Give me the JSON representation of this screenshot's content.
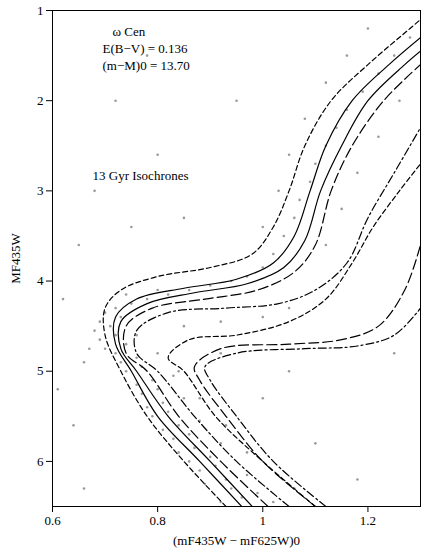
{
  "chart_data": {
    "type": "line",
    "x_label": "(mF435W − mF625W)0",
    "y_label": "MF435W",
    "annotations": [
      "ω Cen",
      "E(B−V) = 0.136",
      "(m−M)0 = 13.70",
      "13 Gyr Isochrones"
    ],
    "xlim": [
      0.6,
      1.3
    ],
    "ylim": [
      6.5,
      1
    ],
    "xticks": [
      0.6,
      0.8,
      1,
      1.2
    ],
    "yticks": [
      1,
      2,
      3,
      4,
      5,
      6
    ],
    "series": [
      {
        "type": "scatter",
        "color": "#9a9a9a",
        "marker": "dot",
        "x": [
          0.92,
          0.96,
          0.99,
          0.94,
          0.89,
          0.93,
          0.97,
          0.88,
          0.91,
          0.86,
          0.9,
          0.84,
          0.87,
          0.92,
          0.83,
          0.86,
          0.81,
          0.84,
          0.88,
          0.79,
          0.82,
          0.78,
          0.81,
          0.85,
          0.77,
          0.8,
          0.76,
          0.79,
          0.83,
          0.74,
          0.77,
          0.73,
          0.76,
          0.72,
          0.7,
          0.74,
          0.69,
          0.72,
          0.68,
          0.71,
          0.69,
          0.73,
          0.7,
          0.72,
          0.75,
          0.78,
          0.74,
          0.82,
          0.86,
          0.8,
          0.9,
          0.94,
          0.97,
          0.85,
          0.92,
          1.0,
          1.05,
          1.0,
          1.02,
          1.04,
          1.06,
          1.07,
          1.09,
          1.1,
          1.12,
          1.14,
          1.16,
          1.19,
          1.22,
          1.25,
          1.28,
          1.0,
          1.03,
          1.05,
          1.08,
          1.12,
          1.16,
          1.2,
          1.12,
          1.15,
          1.18,
          1.22,
          1.26,
          0.62,
          0.65,
          0.68,
          0.75,
          0.85,
          0.8,
          0.61,
          0.64,
          1.05,
          1.1,
          1.0,
          0.92,
          1.18,
          0.66,
          0.95,
          0.72,
          0.78,
          1.25,
          1.02,
          1.06,
          0.97,
          0.93,
          0.88,
          0.84,
          0.8,
          0.76,
          0.67,
          0.66
        ],
        "values": [
          6.45,
          6.4,
          6.35,
          6.3,
          6.25,
          6.2,
          6.15,
          6.1,
          6.05,
          6.0,
          5.95,
          5.9,
          5.85,
          5.8,
          5.75,
          5.7,
          5.65,
          5.6,
          5.55,
          5.5,
          5.45,
          5.4,
          5.35,
          5.3,
          5.25,
          5.2,
          5.15,
          5.1,
          5.05,
          5.0,
          4.95,
          4.9,
          4.85,
          4.8,
          4.75,
          4.7,
          4.65,
          4.6,
          4.55,
          4.5,
          4.45,
          4.4,
          4.35,
          4.3,
          4.25,
          4.2,
          4.15,
          4.15,
          4.1,
          4.1,
          4.05,
          4.0,
          3.95,
          4.5,
          4.45,
          4.4,
          4.3,
          3.85,
          3.7,
          3.5,
          3.3,
          3.1,
          2.9,
          2.7,
          2.5,
          2.3,
          2.1,
          1.9,
          1.7,
          1.5,
          1.3,
          3.4,
          3.0,
          2.6,
          2.2,
          1.8,
          1.5,
          1.2,
          3.6,
          3.2,
          2.8,
          2.4,
          2.0,
          4.2,
          3.6,
          3.0,
          3.4,
          3.3,
          2.6,
          5.2,
          5.6,
          5.0,
          5.8,
          5.3,
          4.8,
          6.2,
          6.3,
          2.0,
          2.0,
          1.5,
          4.8,
          6.45,
          6.3,
          5.9,
          5.6,
          5.3,
          5.0,
          4.8,
          4.6,
          4.75,
          4.9
        ]
      },
      {
        "type": "line",
        "color": "#000000",
        "line_style": "dashed",
        "x": [
          0.93,
          0.85,
          0.78,
          0.73,
          0.7,
          0.7,
          0.73,
          0.8,
          0.9,
          0.98,
          1.02,
          1.05,
          1.08,
          1.13,
          1.2,
          1.28,
          1.3
        ],
        "values": [
          6.5,
          6.0,
          5.5,
          5.0,
          4.6,
          4.3,
          4.1,
          3.95,
          3.85,
          3.7,
          3.4,
          3.0,
          2.5,
          2.0,
          1.6,
          1.2,
          1.1
        ]
      },
      {
        "type": "line",
        "color": "#000000",
        "line_style": "solid",
        "x": [
          0.96,
          0.88,
          0.8,
          0.75,
          0.72,
          0.72,
          0.76,
          0.85,
          0.95,
          1.02,
          1.06,
          1.09,
          1.12,
          1.17,
          1.24,
          1.3
        ],
        "values": [
          6.5,
          6.0,
          5.5,
          5.0,
          4.7,
          4.4,
          4.2,
          4.08,
          3.98,
          3.8,
          3.5,
          3.0,
          2.5,
          2.0,
          1.6,
          1.3
        ]
      },
      {
        "type": "line",
        "color": "#000000",
        "line_style": "solid",
        "x": [
          0.98,
          0.9,
          0.82,
          0.76,
          0.73,
          0.73,
          0.78,
          0.87,
          0.97,
          1.04,
          1.08,
          1.11,
          1.15,
          1.2,
          1.27,
          1.3
        ],
        "values": [
          6.5,
          6.0,
          5.5,
          5.0,
          4.75,
          4.45,
          4.25,
          4.13,
          4.03,
          3.85,
          3.55,
          3.0,
          2.5,
          2.0,
          1.6,
          1.45
        ]
      },
      {
        "type": "line",
        "color": "#000000",
        "line_style": "longdash",
        "x": [
          1.01,
          0.92,
          0.84,
          0.78,
          0.74,
          0.74,
          0.79,
          0.89,
          0.99,
          1.06,
          1.1,
          1.13,
          1.17,
          1.23,
          1.3
        ],
        "values": [
          6.5,
          6.0,
          5.5,
          5.0,
          4.8,
          4.5,
          4.3,
          4.2,
          4.1,
          3.9,
          3.6,
          3.0,
          2.5,
          2.0,
          1.6
        ]
      },
      {
        "type": "line",
        "color": "#000000",
        "line_style": "dashdot",
        "x": [
          1.05,
          0.95,
          0.87,
          0.8,
          0.76,
          0.76,
          0.82,
          0.93,
          1.03,
          1.1,
          1.16,
          1.2,
          1.25,
          1.3
        ],
        "values": [
          6.5,
          6.0,
          5.5,
          5.0,
          4.8,
          4.55,
          4.35,
          4.3,
          4.25,
          4.1,
          3.8,
          3.3,
          2.8,
          2.3
        ]
      },
      {
        "type": "line",
        "color": "#000000",
        "line_style": "dashed",
        "x": [
          1.1,
          1.0,
          0.91,
          0.85,
          0.82,
          0.86,
          0.95,
          1.05,
          1.12,
          1.17,
          1.21,
          1.26,
          1.3
        ],
        "values": [
          6.5,
          6.0,
          5.5,
          5.0,
          4.85,
          4.65,
          4.6,
          4.45,
          4.2,
          3.8,
          3.4,
          3.0,
          2.7
        ]
      },
      {
        "type": "line",
        "color": "#000000",
        "line_style": "longdash",
        "x": [
          1.1,
          1.0,
          0.93,
          0.88,
          0.87,
          0.92,
          1.05,
          1.15,
          1.22,
          1.27,
          1.3
        ],
        "values": [
          6.5,
          6.0,
          5.5,
          5.1,
          4.95,
          4.75,
          4.7,
          4.65,
          4.5,
          4.1,
          3.6
        ]
      },
      {
        "type": "line",
        "color": "#000000",
        "line_style": "dashdot",
        "x": [
          1.12,
          1.02,
          0.95,
          0.9,
          0.89,
          0.95,
          1.08,
          1.18,
          1.25,
          1.3
        ],
        "values": [
          6.5,
          6.0,
          5.5,
          5.1,
          4.95,
          4.8,
          4.75,
          4.72,
          4.6,
          4.3
        ]
      }
    ]
  }
}
